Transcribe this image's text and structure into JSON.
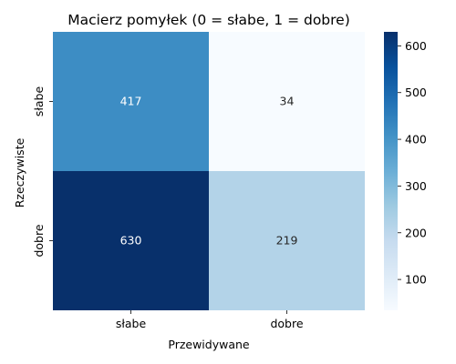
{
  "chart_data": {
    "type": "heatmap",
    "title": "Macierz pomyłek (0 = słabe, 1 = dobre)",
    "xlabel": "Przewidywane",
    "ylabel": "Rzeczywiste",
    "x_categories": [
      "słabe",
      "dobre"
    ],
    "y_categories": [
      "słabe",
      "dobre"
    ],
    "values": [
      [
        417,
        34
      ],
      [
        630,
        219
      ]
    ],
    "colorbar": {
      "range": [
        34,
        630
      ],
      "ticks": [
        100,
        200,
        300,
        400,
        500,
        600
      ]
    },
    "colormap": "Blues"
  }
}
